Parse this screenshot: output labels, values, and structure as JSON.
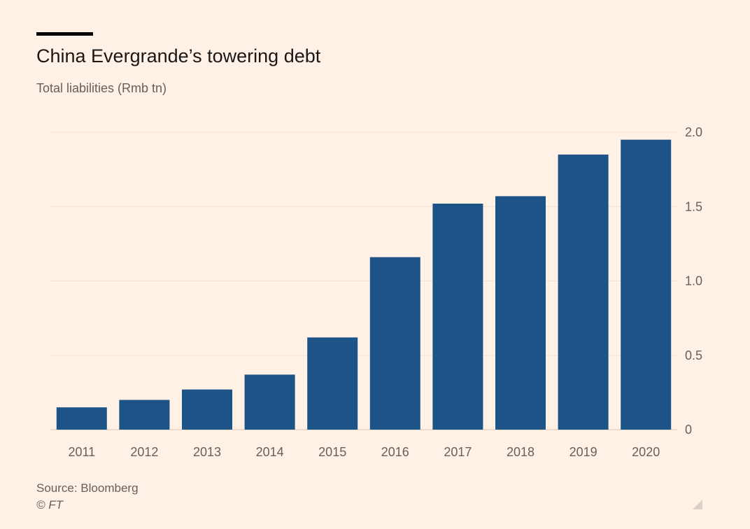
{
  "chart_data": {
    "type": "bar",
    "title": "China Evergrande’s towering debt",
    "subtitle": "Total liabilities (Rmb tn)",
    "categories": [
      "2011",
      "2012",
      "2013",
      "2014",
      "2015",
      "2016",
      "2017",
      "2018",
      "2019",
      "2020"
    ],
    "values": [
      0.15,
      0.2,
      0.27,
      0.37,
      0.62,
      1.16,
      1.52,
      1.57,
      1.85,
      1.95
    ],
    "ylim": [
      0,
      2.0
    ],
    "yticks": [
      {
        "value": 0,
        "label": "0"
      },
      {
        "value": 0.5,
        "label": "0.5"
      },
      {
        "value": 1.0,
        "label": "1.0"
      },
      {
        "value": 1.5,
        "label": "1.5"
      },
      {
        "value": 2.0,
        "label": "2.0"
      }
    ],
    "y_axis_side": "right",
    "grid": true,
    "legend": "none",
    "bar_color": "#1d5488",
    "source": "Source: Bloomberg",
    "credit": "© FT"
  },
  "icons": {
    "resize": "resize-grip-icon"
  }
}
